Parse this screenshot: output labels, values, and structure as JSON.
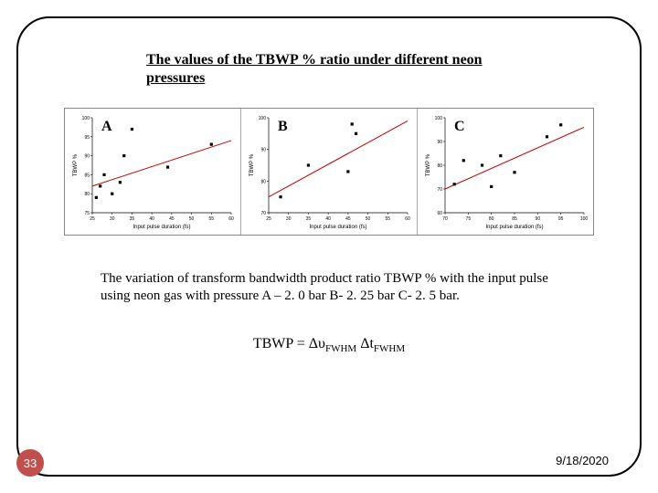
{
  "title_line1": "The values of the  TBWP % ratio under different neon",
  "title_line2": "pressures",
  "caption": "The variation of transform bandwidth product ratio TBWP % with the input pulse using neon gas with pressure A – 2. 0 bar B- 2. 25 bar C- 2. 5 bar.",
  "formula_parts": {
    "lhs": "TBWP",
    "eq": " = ",
    "deltav": "Δυ",
    "fwhm": "FWHM",
    "deltat": " Δt"
  },
  "page_number": "33",
  "date": "9/18/2020",
  "chart_common": {
    "xlabel_A": "Input  pulse duration (fs)",
    "xlabel_BC": "Input pulse duration (fs)",
    "ylabel": "TBWP %",
    "bg": "#ffffff",
    "axis_color": "#000000",
    "point_color": "#000000",
    "fit_color": "#c00000",
    "fit_stroke_width": 1,
    "marker_size": 1.6
  },
  "panels": [
    {
      "label": "A",
      "xlim": [
        25,
        60
      ],
      "xtick_step": 5,
      "ylim": [
        75,
        100
      ],
      "ytick_step": 5,
      "points": [
        [
          26,
          79
        ],
        [
          27,
          82
        ],
        [
          28,
          85
        ],
        [
          30,
          80
        ],
        [
          32,
          83
        ],
        [
          33,
          90
        ],
        [
          35,
          97
        ],
        [
          44,
          87
        ],
        [
          55,
          93
        ]
      ],
      "fit": [
        [
          25,
          82
        ],
        [
          60,
          94
        ]
      ]
    },
    {
      "label": "B",
      "xlim": [
        25,
        60
      ],
      "xtick_step": 5,
      "ylim": [
        70,
        100
      ],
      "ytick_step": 10,
      "points": [
        [
          28,
          75
        ],
        [
          35,
          85
        ],
        [
          45,
          83
        ],
        [
          46,
          98
        ],
        [
          47,
          95
        ]
      ],
      "fit": [
        [
          25,
          75
        ],
        [
          60,
          99
        ]
      ]
    },
    {
      "label": "C",
      "xlim": [
        70,
        100
      ],
      "xtick_step": 5,
      "ylim": [
        60,
        100
      ],
      "ytick_step": 10,
      "points": [
        [
          72,
          72
        ],
        [
          74,
          82
        ],
        [
          78,
          80
        ],
        [
          80,
          71
        ],
        [
          82,
          84
        ],
        [
          85,
          77
        ],
        [
          92,
          92
        ],
        [
          95,
          97
        ]
      ],
      "fit": [
        [
          70,
          70
        ],
        [
          100,
          96
        ]
      ]
    }
  ]
}
